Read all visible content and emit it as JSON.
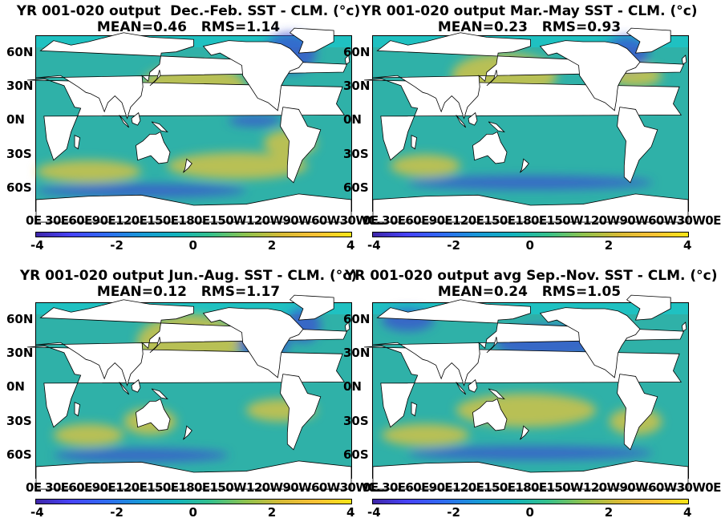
{
  "panels": [
    {
      "title_line1": "YR 001-020 output  Dec.-Feb. SST - CLM. (°c)",
      "title_line2": "MEAN=0.46   RMS=1.14",
      "lat_labels": [
        "60N",
        "30N",
        "0N",
        "30S",
        "60S"
      ],
      "lon_labels": "0E 30E60E90E120E150E180E150W120W90W60W30W0E",
      "cbar_ticks": [
        "-4",
        "-2",
        "0",
        "2",
        "4"
      ]
    },
    {
      "title_line1": "YR 001-020 output Mar.-May SST - CLM. (°c)",
      "title_line2": "MEAN=0.23   RMS=0.93",
      "lat_labels": [
        "60N",
        "30N",
        "0N",
        "30S",
        "60S"
      ],
      "lon_labels": "0E 30E60E90E120E150E180E150W120W90W60W30W0E",
      "cbar_ticks": [
        "-4",
        "-2",
        "0",
        "2",
        "4"
      ]
    },
    {
      "title_line1": "YR 001-020 output Jun.-Aug. SST - CLM. (°c)",
      "title_line2": "MEAN=0.12   RMS=1.17",
      "lat_labels": [
        "60N",
        "30N",
        "0N",
        "30S",
        "60S"
      ],
      "lon_labels": "0E 30E60E90E120E150E180E150W120W90W60W30W0E",
      "cbar_ticks": [
        "-4",
        "-2",
        "0",
        "2",
        "4"
      ]
    },
    {
      "title_line1": "YR 001-020 output avg Sep.-Nov. SST - CLM. (°c)",
      "title_line2": "MEAN=0.24   RMS=1.05",
      "lat_labels": [
        "60N",
        "30N",
        "0N",
        "30S",
        "60S"
      ],
      "lon_labels": "0E 30E60E90E120E150E180E150W120W90W60W30W0E",
      "cbar_ticks": [
        "-4",
        "-2",
        "0",
        "2",
        "4"
      ]
    }
  ],
  "colors": {
    "ocean_base": "#2fb1a8",
    "land": "#ffffff",
    "warm_anomaly": "#e5c43a",
    "cold_anomaly": "#3a4fd0",
    "arctic": "#1fc1c1"
  },
  "colormap": "parula"
}
